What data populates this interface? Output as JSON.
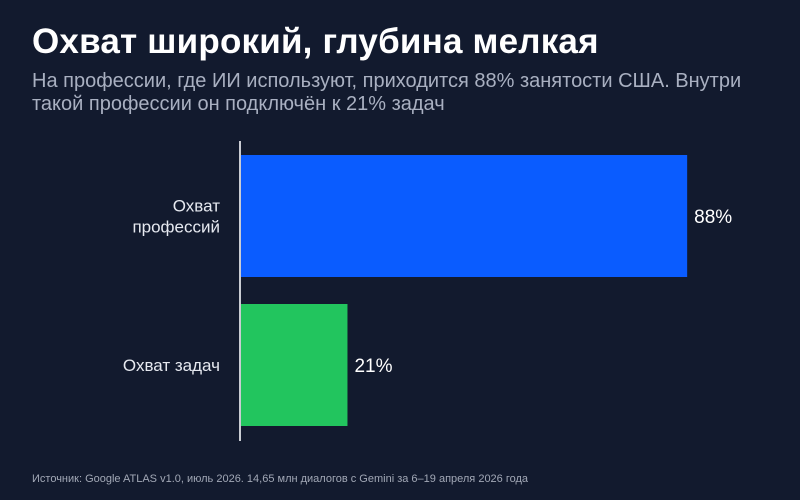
{
  "title": "Охват широкий, глубина мелкая",
  "subtitle": "На профессии, где ИИ используют, приходится 88% занятости США. Внутри такой профессии он подключён к 21% задач",
  "source": "Источник: Google ATLAS v1.0, июль 2026. 14,65 млн диалогов с Gemini за 6–19 апреля 2026 года",
  "colors": {
    "background": "#121a2e",
    "axis": "#c9ccd3"
  },
  "chart_data": {
    "type": "bar",
    "orientation": "horizontal",
    "categories": [
      [
        "Охват",
        "профессий"
      ],
      [
        "Охват задач"
      ]
    ],
    "values": [
      88,
      21
    ],
    "value_labels": [
      "88%",
      "21%"
    ],
    "colors": [
      "#0a5cff",
      "#22c55e"
    ],
    "xlim": [
      0,
      100
    ],
    "grid": false,
    "legend": "none"
  }
}
